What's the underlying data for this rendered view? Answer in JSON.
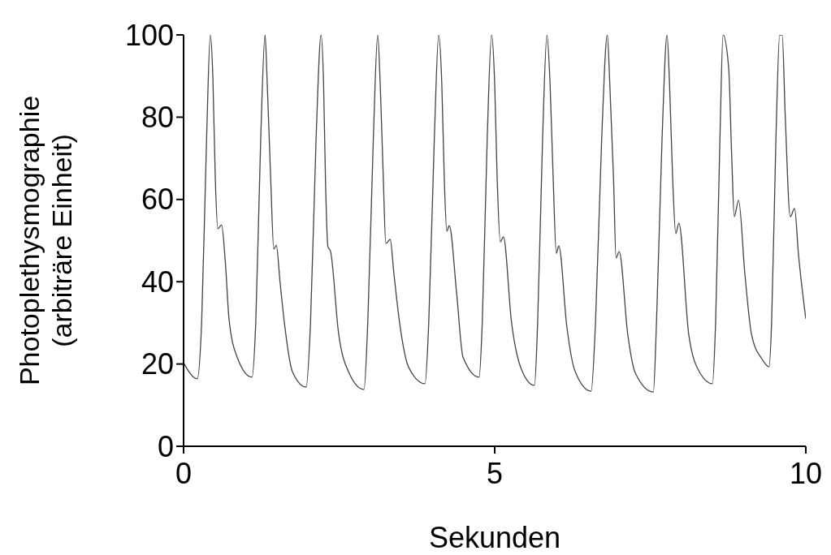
{
  "chart_data": {
    "type": "line",
    "xlabel": "Sekunden",
    "ylabel": "Photoplethysmographie\n(arbiträre Einheit)",
    "xlim": [
      0,
      10
    ],
    "xticks": [
      0,
      5,
      10
    ],
    "ylim": [
      0,
      100
    ],
    "yticks": [
      0,
      20,
      40,
      60,
      80,
      100
    ],
    "grid": false,
    "marker": "none",
    "line_style": "solid",
    "series": [
      {
        "color": "#444444",
        "x": [
          0,
          0.22,
          0.29,
          0.37,
          0.43,
          0.47,
          0.51,
          0.55,
          0.61,
          0.67,
          0.73,
          0.86,
          1.1,
          1.16,
          1.24,
          1.31,
          1.34,
          1.4,
          1.45,
          1.49,
          1.55,
          1.62,
          1.75,
          1.97,
          2.04,
          2.13,
          2.21,
          2.25,
          2.28,
          2.32,
          2.36,
          2.49,
          2.66,
          2.9,
          2.96,
          3.05,
          3.12,
          3.16,
          3.21,
          3.25,
          3.32,
          3.38,
          3.47,
          3.62,
          3.88,
          3.94,
          4.03,
          4.1,
          4.15,
          4.19,
          4.23,
          4.27,
          4.39,
          4.49,
          4.75,
          4.8,
          4.88,
          4.95,
          5.0,
          5.04,
          5.09,
          5.14,
          5.27,
          5.43,
          5.64,
          5.69,
          5.77,
          5.84,
          5.89,
          5.94,
          5.99,
          6.03,
          6.16,
          6.29,
          6.55,
          6.62,
          6.72,
          6.81,
          6.85,
          6.91,
          6.95,
          7.0,
          7.14,
          7.26,
          7.55,
          7.6,
          7.69,
          7.77,
          7.81,
          7.86,
          7.91,
          7.96,
          8.12,
          8.3,
          8.5,
          8.55,
          8.62,
          8.67,
          8.76,
          8.81,
          8.85,
          8.92,
          9.02,
          9.13,
          9.3,
          9.41,
          9.45,
          9.52,
          9.58,
          9.62,
          9.67,
          9.75,
          9.82,
          9.88,
          10
        ],
        "values": [
          20.3,
          16.4,
          30,
          75,
          100,
          90,
          65,
          52.9,
          53.8,
          45,
          31,
          21.7,
          16.8,
          30,
          75,
          100,
          90,
          65,
          47.9,
          48.9,
          40,
          30,
          18.1,
          14.4,
          30,
          75,
          100,
          88,
          65,
          48.5,
          47.5,
          27.6,
          17.8,
          13.8,
          30,
          75,
          100,
          88,
          65,
          49.3,
          50.3,
          42,
          30.2,
          19.1,
          15.2,
          30,
          75,
          100,
          88,
          65,
          52.3,
          53.6,
          36.9,
          21.7,
          16.8,
          30,
          75,
          100,
          88,
          65,
          49.7,
          50.9,
          30.2,
          18.7,
          14.8,
          30,
          75,
          100,
          88,
          65,
          46.9,
          48.7,
          29,
          18.3,
          13.4,
          30,
          75,
          100,
          88,
          65,
          45.8,
          47.3,
          27,
          17.8,
          13.2,
          30,
          75,
          100,
          88,
          65,
          51.7,
          54.2,
          27,
          17.8,
          15.2,
          30,
          75,
          100,
          92,
          70,
          55.8,
          59.8,
          42,
          27,
          21.1,
          19.3,
          30,
          75,
          100,
          100,
          80,
          55.8,
          57.8,
          47,
          31
        ]
      }
    ]
  }
}
